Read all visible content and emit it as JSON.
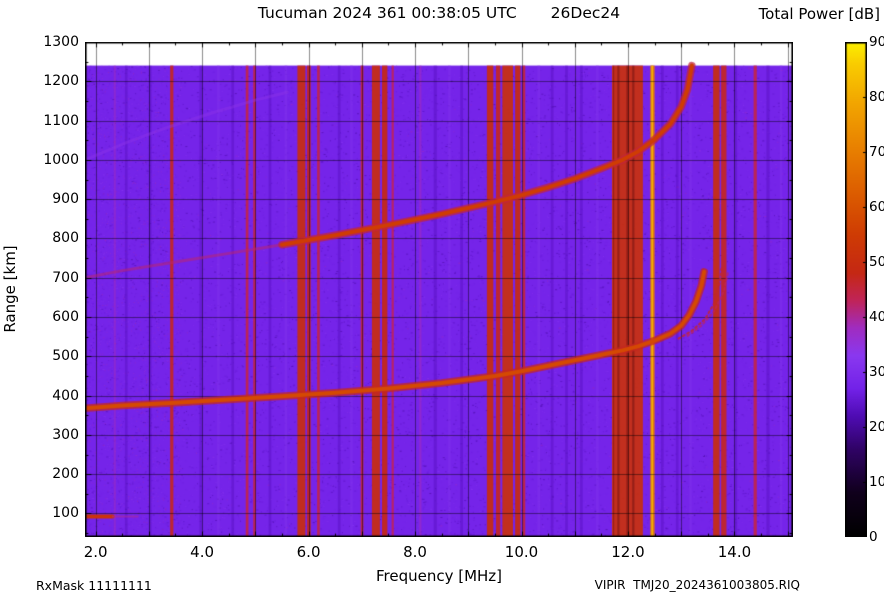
{
  "header": {
    "title": "Tucuman 2024 361 00:38:05 UTC",
    "date": "26Dec24",
    "colorbar_title": "Total Power [dB]"
  },
  "axes": {
    "xlabel": "Frequency [MHz]",
    "ylabel": "Range [km]"
  },
  "footer": {
    "rx_mask": "RxMask 11111111",
    "file_label": "VIPIR  TMJ20_2024361003805.RIQ"
  },
  "chart_data": {
    "type": "heatmap",
    "title": "Tucuman 2024 361 00:38:05 UTC  26Dec24",
    "xlabel": "Frequency [MHz]",
    "ylabel": "Range [km]",
    "colorbar_label": "Total Power [dB]",
    "xlim": [
      1.8,
      15.1
    ],
    "ylim": [
      40,
      1300
    ],
    "data_top_km": 1240,
    "x_ticks": [
      2,
      4,
      6,
      8,
      10,
      12,
      14
    ],
    "x_tick_labels": [
      "2.0",
      "4.0",
      "6.0",
      "8.0",
      "10.0",
      "12.0",
      "14.0"
    ],
    "y_ticks": [
      100,
      200,
      300,
      400,
      500,
      600,
      700,
      800,
      900,
      1000,
      1100,
      1200,
      1300
    ],
    "colorbar": {
      "min": 0,
      "max": 90,
      "ticks": [
        0,
        10,
        20,
        30,
        40,
        50,
        60,
        70,
        80,
        90
      ]
    },
    "background_db": 27.5,
    "colormap": [
      {
        "v": 0,
        "c": "#000000"
      },
      {
        "v": 8,
        "c": "#10001c"
      },
      {
        "v": 16,
        "c": "#300366"
      },
      {
        "v": 22,
        "c": "#4f0cb4"
      },
      {
        "v": 27,
        "c": "#7322e8"
      },
      {
        "v": 33,
        "c": "#8a38f0"
      },
      {
        "v": 38,
        "c": "#a02cc0"
      },
      {
        "v": 43,
        "c": "#c02458"
      },
      {
        "v": 48,
        "c": "#c52814"
      },
      {
        "v": 55,
        "c": "#cf3c04"
      },
      {
        "v": 63,
        "c": "#dd5f00"
      },
      {
        "v": 71,
        "c": "#e98200"
      },
      {
        "v": 79,
        "c": "#f2a600"
      },
      {
        "v": 86,
        "c": "#f9cc00"
      },
      {
        "v": 90,
        "c": "#fcf000"
      }
    ],
    "rfi_stripes": [
      {
        "f0": 2.34,
        "f1": 2.38,
        "db": 38,
        "alpha": 0.5
      },
      {
        "f0": 3.4,
        "f1": 3.46,
        "db": 47
      },
      {
        "f0": 4.82,
        "f1": 4.87,
        "db": 44
      },
      {
        "f0": 4.96,
        "f1": 5.01,
        "db": 44
      },
      {
        "f0": 5.79,
        "f1": 5.94,
        "db": 50
      },
      {
        "f0": 5.97,
        "f1": 6.04,
        "db": 47
      },
      {
        "f0": 6.16,
        "f1": 6.21,
        "db": 44
      },
      {
        "f0": 6.98,
        "f1": 7.03,
        "db": 45
      },
      {
        "f0": 7.19,
        "f1": 7.34,
        "db": 50
      },
      {
        "f0": 7.38,
        "f1": 7.48,
        "db": 48
      },
      {
        "f0": 7.56,
        "f1": 7.6,
        "db": 43
      },
      {
        "f0": 8.08,
        "f1": 8.12,
        "db": 38,
        "alpha": 0.6
      },
      {
        "f0": 9.35,
        "f1": 9.47,
        "db": 50
      },
      {
        "f0": 9.52,
        "f1": 9.6,
        "db": 47
      },
      {
        "f0": 9.64,
        "f1": 9.84,
        "db": 51
      },
      {
        "f0": 9.88,
        "f1": 9.98,
        "db": 49
      },
      {
        "f0": 10.02,
        "f1": 10.07,
        "db": 45
      },
      {
        "f0": 11.7,
        "f1": 12.28,
        "db": 51
      },
      {
        "f0": 12.42,
        "f1": 12.5,
        "db": 70
      },
      {
        "f0": 12.44,
        "f1": 12.47,
        "db": 82
      },
      {
        "f0": 13.6,
        "f1": 13.72,
        "db": 50
      },
      {
        "f0": 13.75,
        "f1": 13.85,
        "db": 47
      },
      {
        "f0": 14.36,
        "f1": 14.42,
        "db": 44
      }
    ],
    "stripe_shadows": [
      {
        "f0": 11.72,
        "f1": 11.74
      },
      {
        "f0": 11.8,
        "f1": 11.84
      },
      {
        "f0": 11.97,
        "f1": 12.01
      },
      {
        "f0": 12.08,
        "f1": 12.12
      }
    ],
    "faint_stripes": [
      {
        "f0": 2.55,
        "f1": 2.6,
        "db": 23
      },
      {
        "f0": 3.0,
        "f1": 3.05,
        "db": 23
      },
      {
        "f0": 3.95,
        "f1": 4.0,
        "db": 23
      },
      {
        "f0": 4.28,
        "f1": 4.33,
        "db": 31,
        "alpha": 0.5
      },
      {
        "f0": 4.55,
        "f1": 4.6,
        "db": 23
      },
      {
        "f0": 5.25,
        "f1": 5.3,
        "db": 23
      },
      {
        "f0": 5.55,
        "f1": 5.6,
        "db": 31,
        "alpha": 0.5
      },
      {
        "f0": 6.55,
        "f1": 6.6,
        "db": 23
      },
      {
        "f0": 6.78,
        "f1": 6.83,
        "db": 31,
        "alpha": 0.5
      },
      {
        "f0": 8.35,
        "f1": 8.41,
        "db": 23
      },
      {
        "f0": 8.62,
        "f1": 8.67,
        "db": 31,
        "alpha": 0.5
      },
      {
        "f0": 8.85,
        "f1": 8.9,
        "db": 23
      },
      {
        "f0": 10.3,
        "f1": 10.35,
        "db": 31,
        "alpha": 0.5
      },
      {
        "f0": 10.55,
        "f1": 10.6,
        "db": 23
      },
      {
        "f0": 10.82,
        "f1": 10.87,
        "db": 23
      },
      {
        "f0": 11.1,
        "f1": 11.15,
        "db": 23
      },
      {
        "f0": 11.4,
        "f1": 11.45,
        "db": 31,
        "alpha": 0.5
      },
      {
        "f0": 12.62,
        "f1": 12.67,
        "db": 23
      },
      {
        "f0": 12.9,
        "f1": 12.95,
        "db": 23
      },
      {
        "f0": 13.15,
        "f1": 13.2,
        "db": 31,
        "alpha": 0.5
      },
      {
        "f0": 14.0,
        "f1": 14.05,
        "db": 23
      },
      {
        "f0": 14.6,
        "f1": 14.66,
        "db": 23
      },
      {
        "f0": 14.85,
        "f1": 14.9,
        "db": 31,
        "alpha": 0.5
      }
    ],
    "traces": [
      {
        "name": "f-trace-first-hop",
        "width": 4,
        "core_db": 58,
        "halo_db": 47,
        "points": [
          [
            1.8,
            368
          ],
          [
            2.5,
            375
          ],
          [
            3.5,
            382
          ],
          [
            4.5,
            390
          ],
          [
            5.5,
            398
          ],
          [
            6.5,
            407
          ],
          [
            7.5,
            418
          ],
          [
            8.5,
            432
          ],
          [
            9.5,
            450
          ],
          [
            10.0,
            462
          ],
          [
            10.5,
            476
          ],
          [
            11.0,
            490
          ],
          [
            11.5,
            504
          ],
          [
            11.9,
            515
          ],
          [
            12.2,
            526
          ],
          [
            12.5,
            540
          ],
          [
            12.8,
            558
          ],
          [
            13.0,
            578
          ],
          [
            13.15,
            605
          ],
          [
            13.28,
            640
          ],
          [
            13.38,
            680
          ],
          [
            13.43,
            715
          ]
        ]
      },
      {
        "name": "f-trace-second-hop-faint-start",
        "width": 3,
        "core_db": 42,
        "alpha": 0.55,
        "points": [
          [
            1.8,
            700
          ],
          [
            2.5,
            718
          ],
          [
            3.5,
            740
          ],
          [
            4.5,
            762
          ],
          [
            5.5,
            784
          ]
        ]
      },
      {
        "name": "f-trace-second-hop",
        "width": 4,
        "core_db": 55,
        "halo_db": 45,
        "points": [
          [
            5.5,
            784
          ],
          [
            6.5,
            808
          ],
          [
            7.5,
            834
          ],
          [
            8.5,
            862
          ],
          [
            9.5,
            893
          ],
          [
            10.0,
            910
          ],
          [
            10.5,
            930
          ],
          [
            11.0,
            952
          ],
          [
            11.5,
            978
          ],
          [
            11.9,
            1000
          ],
          [
            12.2,
            1022
          ],
          [
            12.5,
            1052
          ],
          [
            12.8,
            1092
          ],
          [
            13.0,
            1135
          ],
          [
            13.12,
            1180
          ],
          [
            13.2,
            1240
          ]
        ]
      },
      {
        "name": "f-trace-third-hop-faint",
        "width": 3,
        "core_db": 34,
        "alpha": 0.45,
        "points": [
          [
            1.8,
            1000
          ],
          [
            2.6,
            1045
          ],
          [
            3.4,
            1085
          ],
          [
            4.2,
            1120
          ],
          [
            5.0,
            1152
          ],
          [
            5.6,
            1172
          ]
        ]
      },
      {
        "name": "x-mode-arc-1",
        "width": 2,
        "core_db": 46,
        "alpha": 0.85,
        "dash": [
          2,
          3
        ],
        "points": [
          [
            12.95,
            545
          ],
          [
            13.2,
            565
          ],
          [
            13.45,
            595
          ],
          [
            13.62,
            635
          ],
          [
            13.72,
            685
          ],
          [
            13.76,
            725
          ]
        ]
      },
      {
        "name": "x-mode-arc-2",
        "width": 2,
        "core_db": 43,
        "alpha": 0.7,
        "dash": [
          2,
          3
        ],
        "points": [
          [
            13.12,
            552
          ],
          [
            13.38,
            578
          ],
          [
            13.62,
            615
          ],
          [
            13.8,
            665
          ],
          [
            13.88,
            715
          ]
        ]
      }
    ],
    "e_region_echo": {
      "range_km": 92,
      "f0": 1.8,
      "f1": 2.32,
      "db": 52
    }
  }
}
